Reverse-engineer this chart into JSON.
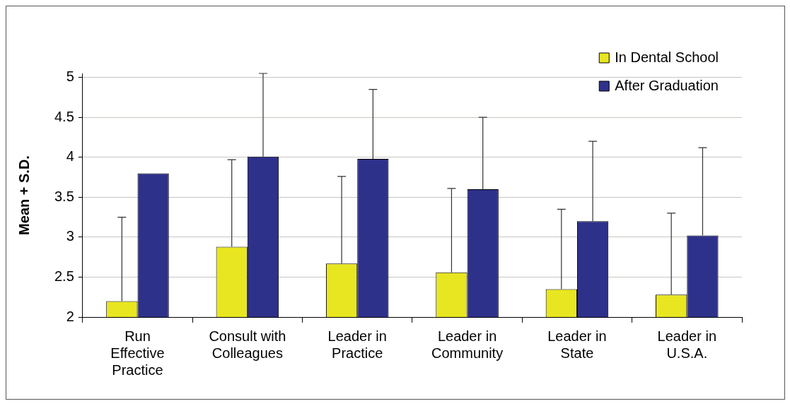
{
  "chart_data": {
    "type": "bar",
    "ylabel": "Mean + S.D.",
    "categories": [
      "Run Effective Practice",
      "Consult with Colleagues",
      "Leader in Practice",
      "Leader in Community",
      "Leader in State",
      "Leader in U.S.A."
    ],
    "series": [
      {
        "name": "In Dental School",
        "color": "#e8e620",
        "values": [
          2.2,
          2.88,
          2.67,
          2.56,
          2.35,
          2.28
        ],
        "errors": [
          [
            2.2,
            3.25
          ],
          [
            2.88,
            3.97
          ],
          [
            2.67,
            3.76
          ],
          [
            2.56,
            3.61
          ],
          [
            2.35,
            3.35
          ],
          [
            2.28,
            3.3
          ]
        ]
      },
      {
        "name": "After Graduation",
        "color": "#2e318a",
        "values": [
          3.8,
          4.01,
          3.98,
          3.6,
          3.2,
          3.02
        ],
        "errors": [
          null,
          [
            4.01,
            5.05
          ],
          [
            3.98,
            4.85
          ],
          [
            3.6,
            4.5
          ],
          [
            3.2,
            4.2
          ],
          [
            3.02,
            4.12
          ]
        ]
      }
    ],
    "ylim": [
      2,
      5.05
    ],
    "yticks": [
      2,
      2.5,
      3,
      3.5,
      4,
      4.5,
      5
    ],
    "grid": "y",
    "legend": "top right"
  }
}
